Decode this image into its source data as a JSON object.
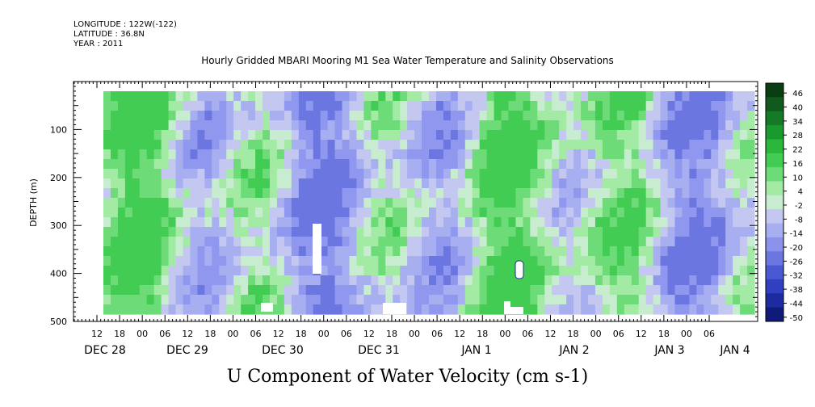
{
  "header": {
    "longitude": "LONGITUDE : 122W(-122)",
    "latitude": "LATITUDE : 36.8N",
    "year": "YEAR : 2011"
  },
  "chart_data": {
    "type": "heatmap",
    "title": "Hourly Gridded MBARI Mooring M1 Sea Water Temperature and Salinity Observations",
    "xlabel": "U Component of Water Velocity (cm s-1)",
    "ylabel": "DEPTH (m)",
    "ylim": [
      500,
      0
    ],
    "y_ticks": [
      "100",
      "200",
      "300",
      "400",
      "500"
    ],
    "x_hour_ticks": [
      "12",
      "18",
      "00",
      "06",
      "12",
      "18",
      "00",
      "06",
      "12",
      "18",
      "00",
      "06",
      "12",
      "18",
      "00",
      "06",
      "12",
      "18",
      "00",
      "06",
      "12",
      "18",
      "00",
      "06",
      "12",
      "18",
      "00",
      "06"
    ],
    "x_date_labels": [
      "DEC 28",
      "DEC 29",
      "DEC 30",
      "DEC 31",
      "JAN  1",
      "JAN  2",
      "JAN  3",
      "JAN  4"
    ],
    "colorbar": {
      "labels": [
        "46",
        "40",
        "34",
        "28",
        "22",
        "16",
        "10",
        "4",
        "-2",
        "-8",
        "-14",
        "-20",
        "-26",
        "-32",
        "-38",
        "-44",
        "-50"
      ],
      "colors": [
        "#0b3d12",
        "#0f5a1c",
        "#147a25",
        "#1a9a2e",
        "#29b83c",
        "#43cc53",
        "#6ddb78",
        "#a3eba5",
        "#c8ecd0",
        "#c4c8f0",
        "#a7aff0",
        "#8a92ea",
        "#6b76e0",
        "#4a58d2",
        "#3040c0",
        "#1e2ba0",
        "#101a78"
      ]
    }
  }
}
